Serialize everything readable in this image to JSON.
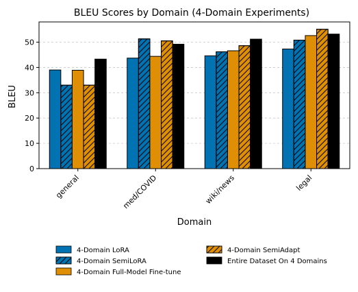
{
  "chart_data": {
    "type": "bar",
    "title": "BLEU Scores by Domain (4-Domain Experiments)",
    "xlabel": "Domain",
    "ylabel": "BLEU",
    "ylim": [
      0,
      58
    ],
    "yticks": [
      0,
      10,
      20,
      30,
      40,
      50
    ],
    "grid": "y-dashed",
    "categories": [
      "general",
      "med/COVID",
      "wiki/news",
      "legal"
    ],
    "series": [
      {
        "name": "4-Domain LoRA",
        "color": "#0173b2",
        "hatch": false,
        "values": [
          39.0,
          43.7,
          44.6,
          47.3
        ]
      },
      {
        "name": "4-Domain SemiLoRA",
        "color": "#0173b2",
        "hatch": true,
        "values": [
          33.0,
          51.3,
          46.2,
          50.8
        ]
      },
      {
        "name": "4-Domain Full-Model Fine-tune",
        "color": "#de8f05",
        "hatch": false,
        "values": [
          38.9,
          44.4,
          46.6,
          52.6
        ]
      },
      {
        "name": "4-Domain SemiAdapt",
        "color": "#de8f05",
        "hatch": true,
        "values": [
          33.0,
          50.5,
          48.6,
          55.1
        ]
      },
      {
        "name": "Entire Dataset On 4 Domains",
        "color": "#000000",
        "hatch": false,
        "values": [
          43.3,
          49.2,
          51.2,
          53.2
        ]
      }
    ],
    "legend": {
      "placement": "bottom",
      "columns": [
        [
          "4-Domain LoRA",
          "4-Domain SemiLoRA",
          "4-Domain Full-Model Fine-tune"
        ],
        [
          "4-Domain SemiAdapt",
          "Entire Dataset On 4 Domains"
        ]
      ]
    }
  }
}
